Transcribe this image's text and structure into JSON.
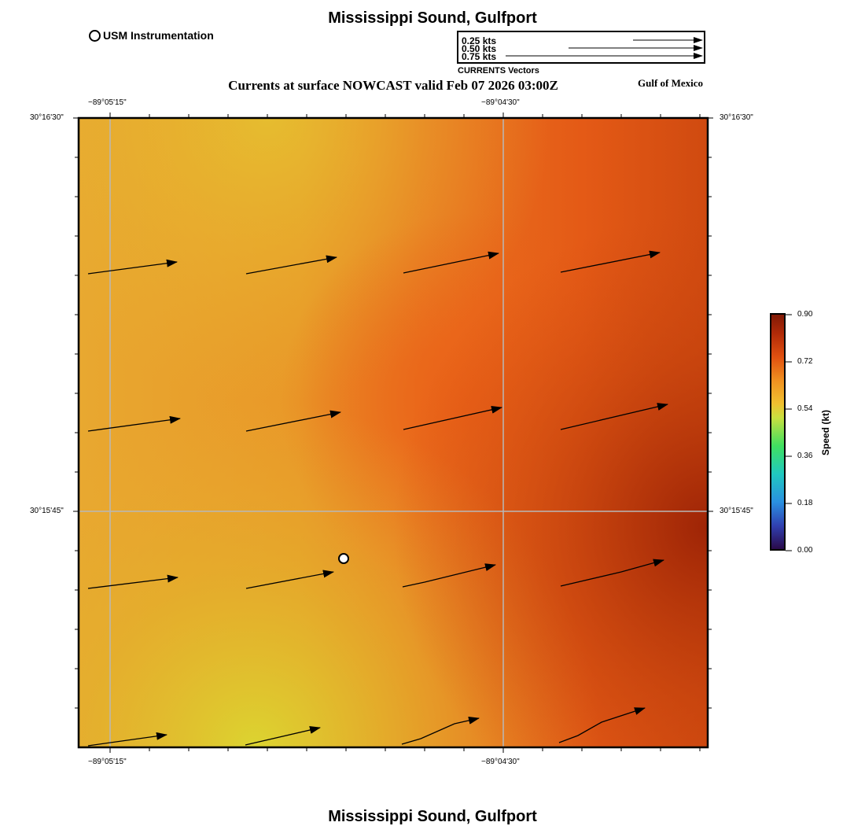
{
  "header": {
    "title": "Mississippi Sound, Gulfport",
    "subtitle": "Currents at surface NOWCAST valid Feb 07 2026 03:00Z",
    "region_label": "Gulf of Mexico"
  },
  "footer": {
    "title": "Mississippi Sound, Gulfport"
  },
  "station_legend": {
    "label": "USM Instrumentation",
    "icon": "circle-marker-icon"
  },
  "vector_legend": {
    "caption": "CURRENTS Vectors",
    "entries": [
      {
        "label": "0.25 kts",
        "speed_kt": 0.25
      },
      {
        "label": "0.50 kts",
        "speed_kt": 0.5
      },
      {
        "label": "0.75 kts",
        "speed_kt": 0.75
      }
    ]
  },
  "map": {
    "lon_ticks": [
      {
        "label": "−89°05'15\""
      },
      {
        "label": "−89°04'30\""
      }
    ],
    "lat_ticks": [
      {
        "label": "30°16'30\""
      },
      {
        "label": "30°15'45\""
      }
    ],
    "gridlines": true,
    "station_marker": {
      "name": "USM Instrumentation"
    }
  },
  "colorbar": {
    "title": "Speed (kt)",
    "ticks": [
      "0.90",
      "0.72",
      "0.54",
      "0.36",
      "0.18",
      "0.00"
    ],
    "min": 0.0,
    "max": 0.9
  }
}
